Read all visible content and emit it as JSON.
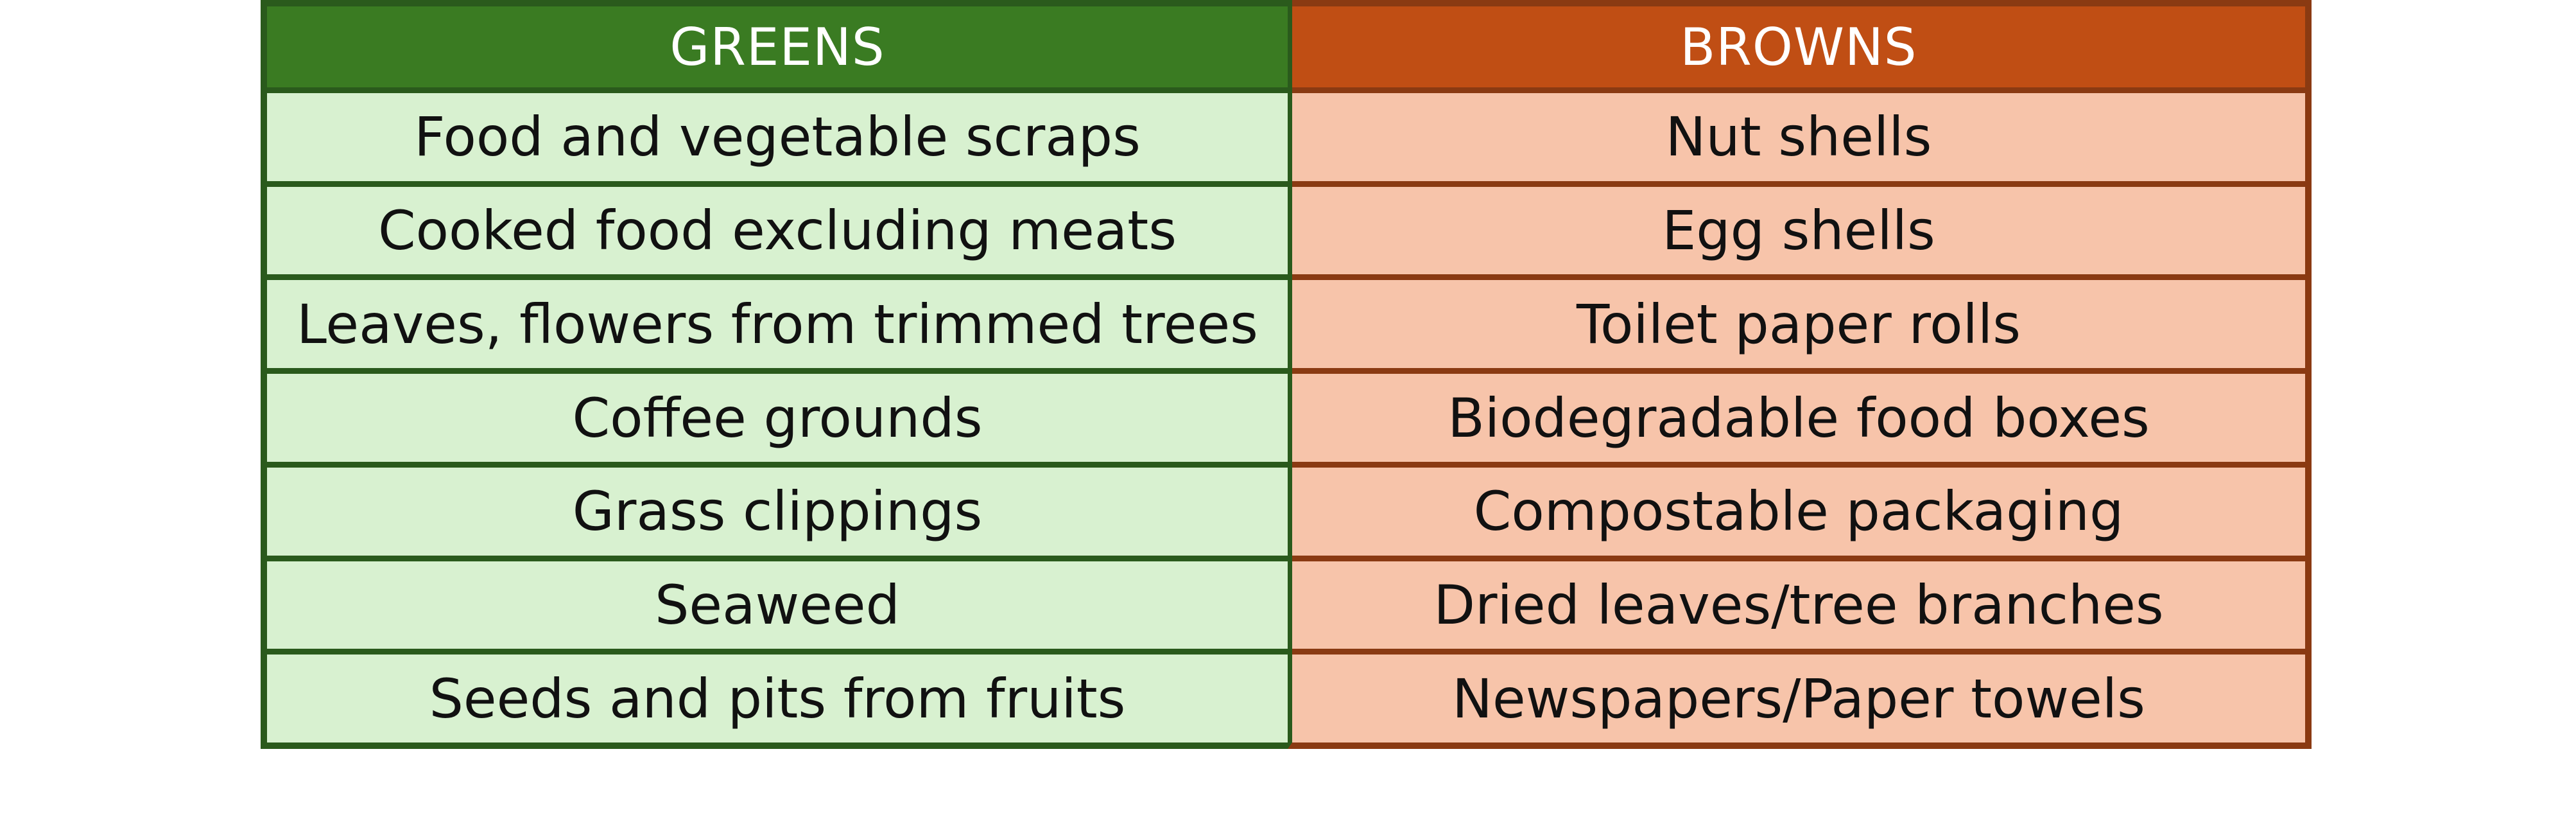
{
  "colors": {
    "greens_header_bg": "#3a7b22",
    "greens_cell_bg": "#d8f1d0",
    "greens_border": "#2a5a1c",
    "browns_header_bg": "#c04e14",
    "browns_cell_bg": "#f7c4aa",
    "browns_border": "#8a3a12"
  },
  "table": {
    "greens": {
      "header": "GREENS",
      "items": [
        "Food and vegetable scraps",
        "Cooked food excluding meats",
        "Leaves, flowers from trimmed trees",
        "Coffee grounds",
        "Grass clippings",
        "Seaweed",
        "Seeds and pits from fruits"
      ]
    },
    "browns": {
      "header": "BROWNS",
      "items": [
        "Nut shells",
        "Egg shells",
        "Toilet paper rolls",
        "Biodegradable food boxes",
        "Compostable packaging",
        "Dried leaves/tree branches",
        "Newspapers/Paper towels"
      ]
    }
  }
}
